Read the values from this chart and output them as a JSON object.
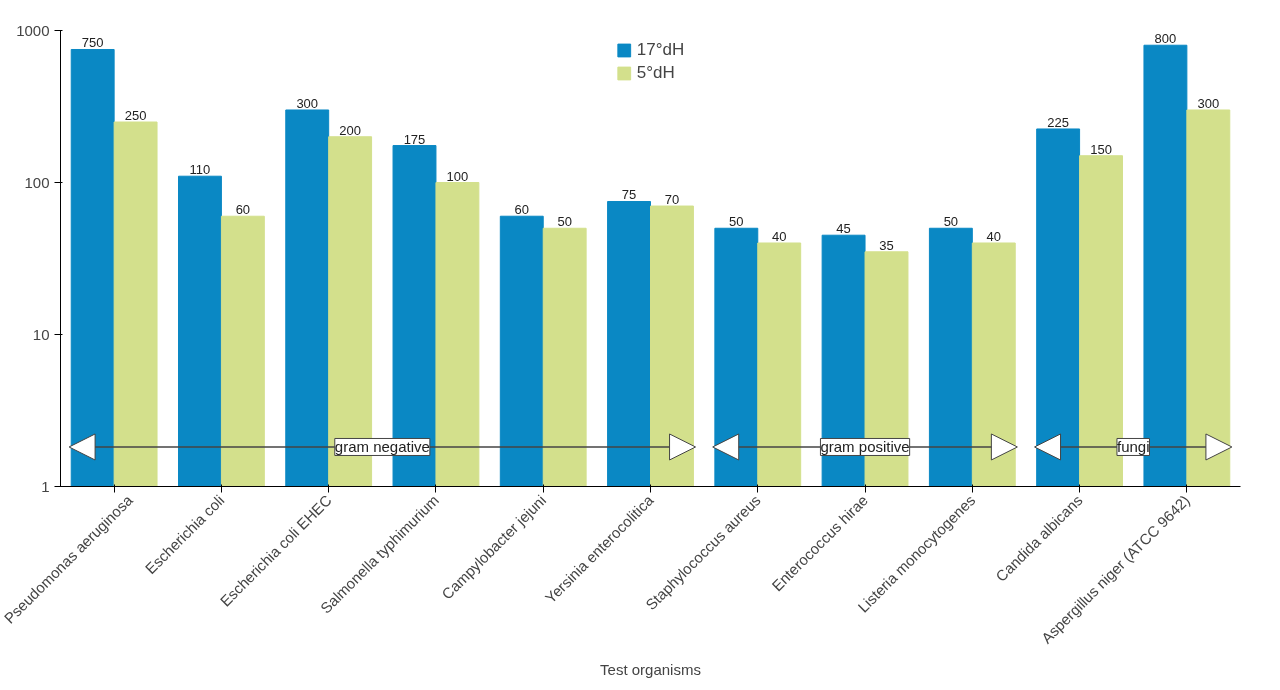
{
  "chart_data": {
    "type": "bar",
    "xlabel": "Test organisms",
    "categories": [
      "Pseudomonas aeruginosa",
      "Escherichia coli",
      "Escherichia coli EHEC",
      "Salmonella typhimurium",
      "Campylobacter jejuni",
      "Yersinia enterocolitica",
      "Staphylococcus aureus",
      "Enterococcus hirae",
      "Listeria monocytogenes",
      "Candida albicans",
      "Aspergillus niger (ATCC 9642)"
    ],
    "series": [
      {
        "name": "17°dH",
        "color": "#0a88c4",
        "values": [
          750,
          110,
          300,
          175,
          60,
          75,
          50,
          45,
          50,
          225,
          800
        ]
      },
      {
        "name": "5°dH",
        "color": "#d3e08c",
        "values": [
          250,
          60,
          200,
          100,
          50,
          70,
          40,
          35,
          40,
          150,
          300
        ]
      }
    ],
    "log": true,
    "ylim": [
      1,
      1000
    ],
    "yticks": [
      1,
      10,
      100,
      1000
    ],
    "grid": false,
    "legend": "top",
    "data_labels": true,
    "annotations": [
      "gram negative",
      "gram positive",
      "fungi"
    ]
  }
}
